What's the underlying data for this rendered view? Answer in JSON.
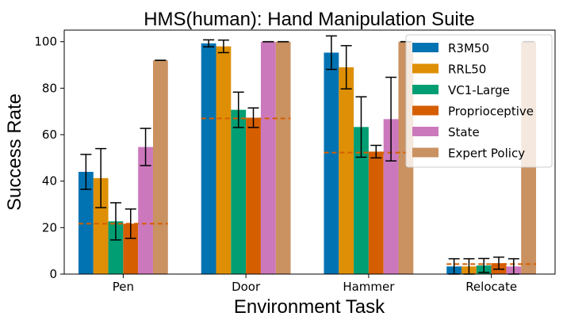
{
  "chart_data": {
    "type": "bar",
    "title": "HMS(human): Hand Manipulation Suite",
    "xlabel": "Environment Task",
    "ylabel": "Success Rate",
    "ylim": [
      0,
      105
    ],
    "yticks": [
      0,
      20,
      40,
      60,
      80,
      100
    ],
    "grid": false,
    "legend_position": "top-right",
    "categories": [
      "Pen",
      "Door",
      "Hammer",
      "Relocate"
    ],
    "series": [
      {
        "name": "R3M50",
        "color": "#0173b2",
        "values": [
          44,
          99.3,
          95.3,
          3.3
        ],
        "error": [
          7.5,
          1.5,
          7.2,
          3.3
        ]
      },
      {
        "name": "RRL50",
        "color": "#de8f05",
        "values": [
          41.3,
          98,
          89,
          3.3
        ],
        "error": [
          12.7,
          2.7,
          9.3,
          3.3
        ]
      },
      {
        "name": "VC1-Large",
        "color": "#029e73",
        "values": [
          22.7,
          70.7,
          63.3,
          3.7
        ],
        "error": [
          8.0,
          7.6,
          13.0,
          3.0
        ]
      },
      {
        "name": "Proprioceptive",
        "color": "#d55e00",
        "values": [
          21.7,
          67.3,
          52.7,
          4.7
        ],
        "error": [
          6.3,
          4.2,
          2.7,
          2.6
        ]
      },
      {
        "name": "State",
        "color": "#cc78bc",
        "values": [
          54.7,
          100,
          66.7,
          3.3
        ],
        "error": [
          8.0,
          0,
          18.0,
          3.3
        ]
      },
      {
        "name": "Expert Policy",
        "color": "#ca9161",
        "values": [
          92,
          100,
          100,
          100
        ],
        "error": [
          0,
          0,
          0,
          0
        ]
      }
    ],
    "reference_lines": [
      21.7,
      67,
      52.3,
      4.3
    ],
    "reference_line_color": "#d55e00"
  }
}
